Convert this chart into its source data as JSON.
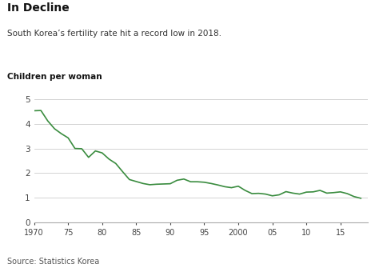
{
  "title": "In Decline",
  "subtitle": "South Korea’s fertility rate hit a record low in 2018.",
  "ylabel": "Children per woman",
  "source": "Source: Statistics Korea",
  "line_color": "#3a8c3f",
  "background_color": "#ffffff",
  "xlim": [
    1970,
    2019
  ],
  "ylim": [
    0,
    5
  ],
  "yticks": [
    0,
    1,
    2,
    3,
    4,
    5
  ],
  "xtick_labels": [
    "1970",
    "75",
    "80",
    "85",
    "90",
    "95",
    "2000",
    "05",
    "10",
    "15"
  ],
  "xtick_positions": [
    1970,
    1975,
    1980,
    1985,
    1990,
    1995,
    2000,
    2005,
    2010,
    2015
  ],
  "years": [
    1970,
    1971,
    1972,
    1973,
    1974,
    1975,
    1976,
    1977,
    1978,
    1979,
    1980,
    1981,
    1982,
    1983,
    1984,
    1985,
    1986,
    1987,
    1988,
    1989,
    1990,
    1991,
    1992,
    1993,
    1994,
    1995,
    1996,
    1997,
    1998,
    1999,
    2000,
    2001,
    2002,
    2003,
    2004,
    2005,
    2006,
    2007,
    2008,
    2009,
    2010,
    2011,
    2012,
    2013,
    2014,
    2015,
    2016,
    2017,
    2018
  ],
  "values": [
    4.53,
    4.54,
    4.12,
    3.8,
    3.6,
    3.43,
    3.0,
    2.99,
    2.64,
    2.9,
    2.82,
    2.57,
    2.39,
    2.06,
    1.74,
    1.66,
    1.58,
    1.53,
    1.55,
    1.56,
    1.57,
    1.71,
    1.76,
    1.65,
    1.65,
    1.63,
    1.58,
    1.52,
    1.45,
    1.41,
    1.47,
    1.3,
    1.17,
    1.18,
    1.15,
    1.08,
    1.12,
    1.25,
    1.19,
    1.15,
    1.23,
    1.24,
    1.3,
    1.19,
    1.21,
    1.24,
    1.17,
    1.05,
    0.98
  ]
}
